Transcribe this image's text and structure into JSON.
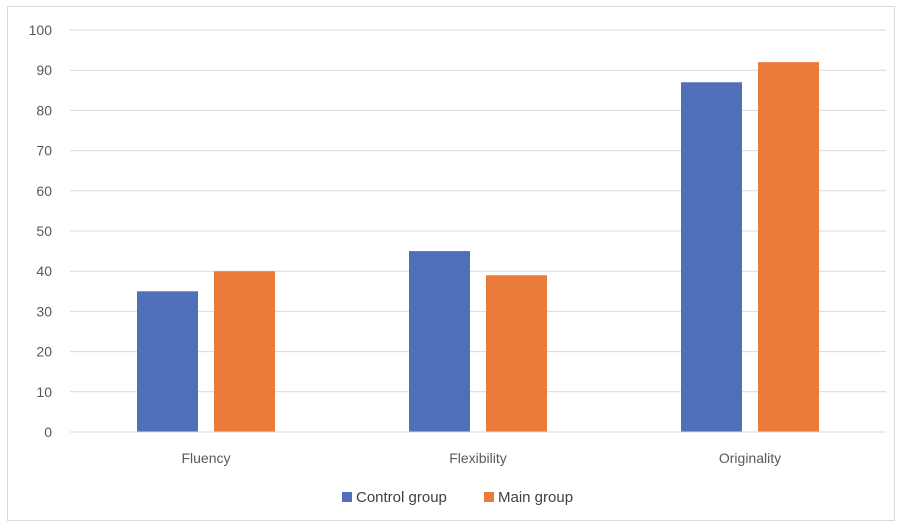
{
  "chart_data": {
    "type": "bar",
    "categories": [
      "Fluency",
      "Flexibility",
      "Originality"
    ],
    "series": [
      {
        "name": "Control group",
        "color": "#4f6fb8",
        "values": [
          35,
          45,
          87
        ]
      },
      {
        "name": "Main group",
        "color": "#eb7b3a",
        "values": [
          40,
          39,
          92
        ]
      }
    ],
    "ylim": [
      0,
      100
    ],
    "yticks": [
      0,
      10,
      20,
      30,
      40,
      50,
      60,
      70,
      80,
      90,
      100
    ],
    "grid": true,
    "legend_position": "bottom"
  }
}
